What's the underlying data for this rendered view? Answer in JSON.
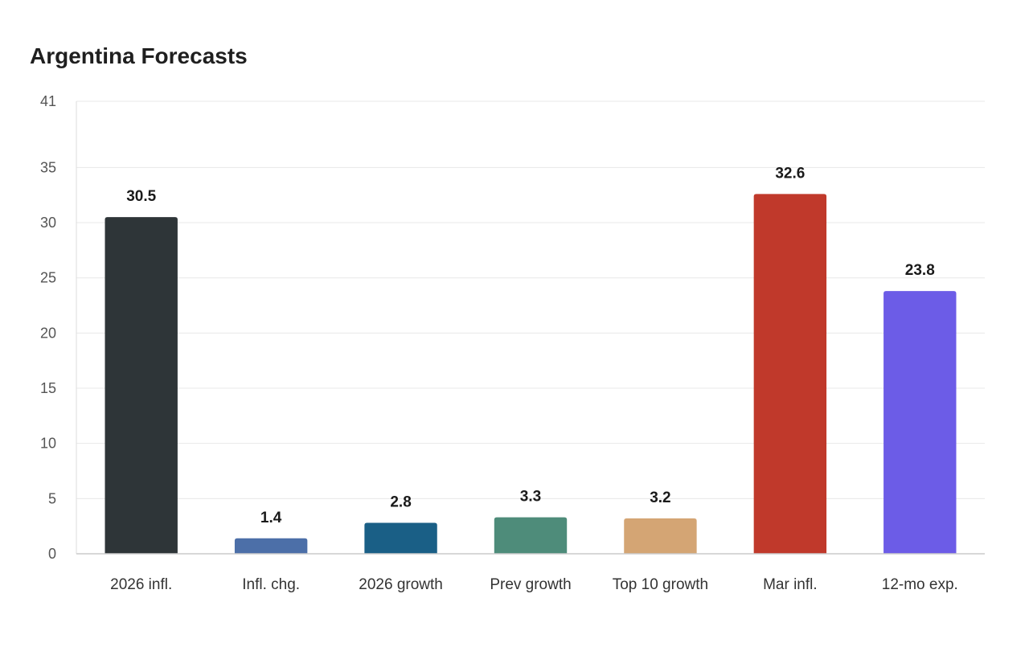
{
  "chart_data": {
    "type": "bar",
    "title": "Argentina Forecasts",
    "xlabel": "",
    "ylabel": "",
    "categories": [
      "2026 infl.",
      "Infl. chg.",
      "2026 growth",
      "Prev growth",
      "Top 10 growth",
      "Mar infl.",
      "12-mo exp."
    ],
    "values": [
      30.5,
      1.4,
      2.8,
      3.3,
      3.2,
      32.6,
      23.8
    ],
    "value_labels": [
      "30.5",
      "1.4",
      "2.8",
      "3.3",
      "3.2",
      "32.6",
      "23.8"
    ],
    "colors": [
      "#2e3538",
      "#4c6fa8",
      "#1a5f86",
      "#4e8c7a",
      "#d4a574",
      "#c0392b",
      "#6c5ce7"
    ],
    "ylim": [
      0,
      41
    ],
    "yticks": [
      0,
      5,
      10,
      15,
      20,
      25,
      30,
      35,
      41
    ],
    "grid": true,
    "legend": "none"
  }
}
